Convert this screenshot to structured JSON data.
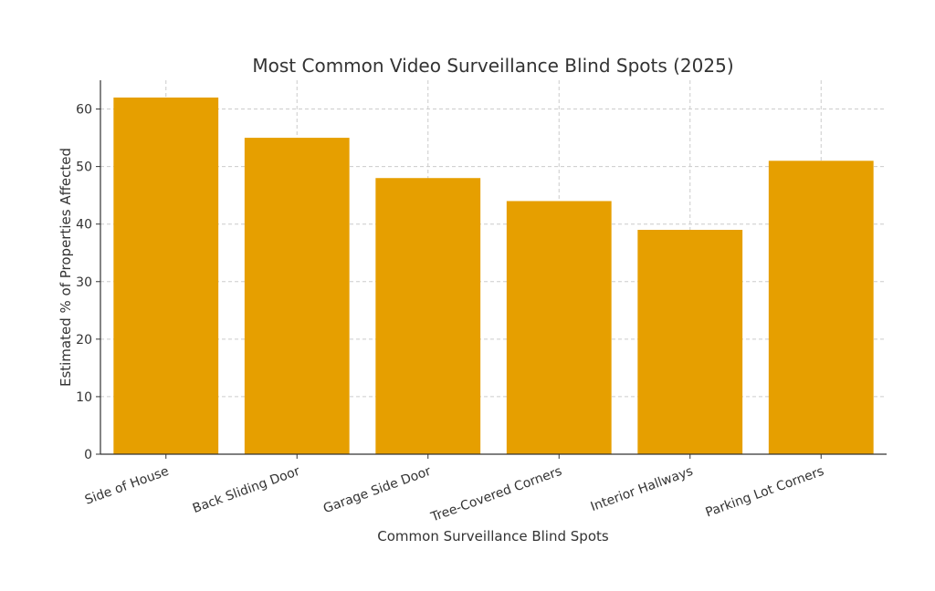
{
  "chart_data": {
    "type": "bar",
    "title": "Most Common Video Surveillance Blind Spots (2025)",
    "xlabel": "Common Surveillance Blind Spots",
    "ylabel": "Estimated % of Properties Affected",
    "categories": [
      "Side of House",
      "Back Sliding Door",
      "Garage Side Door",
      "Tree-Covered Corners",
      "Interior Hallways",
      "Parking Lot Corners"
    ],
    "values": [
      62,
      55,
      48,
      44,
      39,
      51
    ],
    "ylim": [
      0,
      65
    ],
    "yticks": [
      0,
      10,
      20,
      30,
      40,
      50,
      60
    ],
    "grid": true,
    "bar_color": "#E69F00"
  }
}
